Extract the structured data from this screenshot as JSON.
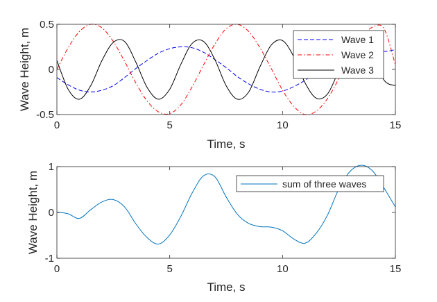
{
  "chart_data": [
    {
      "type": "line",
      "title": "",
      "xlabel": "Time, s",
      "ylabel": "Wave Height, m",
      "xlim": [
        0,
        15
      ],
      "ylim": [
        -0.5,
        0.5
      ],
      "xticks": [
        0,
        5,
        10,
        15
      ],
      "xtick_labels": [
        "0",
        "5",
        "10",
        "15"
      ],
      "yticks": [
        -0.5,
        0,
        0.5
      ],
      "ytick_labels": [
        "-0.5",
        "0",
        "0.5"
      ],
      "grid": false,
      "legend_position": "top-right",
      "x": [
        0,
        0.5,
        1,
        1.5,
        2,
        2.5,
        3,
        3.5,
        4,
        4.5,
        5,
        5.5,
        6,
        6.5,
        7,
        7.5,
        8,
        8.5,
        9,
        9.5,
        10,
        10.5,
        11,
        11.5,
        12,
        12.5,
        13,
        13.5,
        14,
        14.5,
        15
      ],
      "series": [
        {
          "name": "Wave 1",
          "color": "#0000ff",
          "dash": "dashed",
          "values": [
            -0.09,
            -0.17,
            -0.23,
            -0.25,
            -0.23,
            -0.18,
            -0.09,
            0.01,
            0.1,
            0.18,
            0.23,
            0.25,
            0.24,
            0.19,
            0.11,
            0.02,
            -0.08,
            -0.16,
            -0.22,
            -0.25,
            -0.24,
            -0.19,
            -0.12,
            -0.03,
            0.07,
            0.15,
            0.22,
            0.25,
            0.24,
            0.2,
            0.22
          ]
        },
        {
          "name": "Wave 2",
          "color": "#ff0000",
          "dash": "dashdot",
          "values": [
            0.0,
            0.24,
            0.42,
            0.5,
            0.46,
            0.31,
            0.09,
            -0.15,
            -0.35,
            -0.47,
            -0.49,
            -0.39,
            -0.19,
            0.05,
            0.28,
            0.45,
            0.5,
            0.42,
            0.24,
            0.01,
            -0.23,
            -0.41,
            -0.5,
            -0.46,
            -0.32,
            -0.1,
            0.14,
            0.35,
            0.47,
            0.45,
            0.05
          ]
        },
        {
          "name": "Wave 3",
          "color": "#000000",
          "dash": "solid",
          "values": [
            0.1,
            -0.22,
            -0.33,
            -0.18,
            0.1,
            0.3,
            0.31,
            0.08,
            -0.2,
            -0.33,
            -0.22,
            0.06,
            0.29,
            0.31,
            0.11,
            -0.18,
            -0.33,
            -0.25,
            0.03,
            0.27,
            0.32,
            0.14,
            -0.15,
            -0.32,
            -0.27,
            -0.01,
            0.25,
            0.33,
            0.17,
            -0.12,
            -0.18
          ]
        }
      ]
    },
    {
      "type": "line",
      "title": "",
      "xlabel": "Time, s",
      "ylabel": "Wave Height, m",
      "xlim": [
        0,
        15
      ],
      "ylim": [
        -1,
        1
      ],
      "xticks": [
        0,
        5,
        10,
        15
      ],
      "xtick_labels": [
        "0",
        "5",
        "10",
        "15"
      ],
      "yticks": [
        -1,
        0,
        1
      ],
      "ytick_labels": [
        "-1",
        "0",
        "1"
      ],
      "grid": false,
      "legend_position": "top-right",
      "x": [
        0,
        0.5,
        1,
        1.5,
        2,
        2.5,
        3,
        3.5,
        4,
        4.5,
        5,
        5.5,
        6,
        6.5,
        7,
        7.5,
        8,
        8.5,
        9,
        9.5,
        10,
        10.5,
        11,
        11.5,
        12,
        12.5,
        13,
        13.5,
        14,
        14.5,
        15
      ],
      "series": [
        {
          "name": "sum of three waves",
          "color": "#0072bd",
          "dash": "solid",
          "values": [
            0.01,
            -0.03,
            -0.13,
            0.06,
            0.23,
            0.28,
            0.12,
            -0.25,
            -0.55,
            -0.69,
            -0.49,
            -0.08,
            0.43,
            0.8,
            0.78,
            0.34,
            -0.04,
            -0.24,
            -0.31,
            -0.32,
            -0.4,
            -0.58,
            -0.67,
            -0.45,
            -0.05,
            0.52,
            0.9,
            1.03,
            0.9,
            0.53,
            0.12
          ]
        }
      ]
    }
  ]
}
